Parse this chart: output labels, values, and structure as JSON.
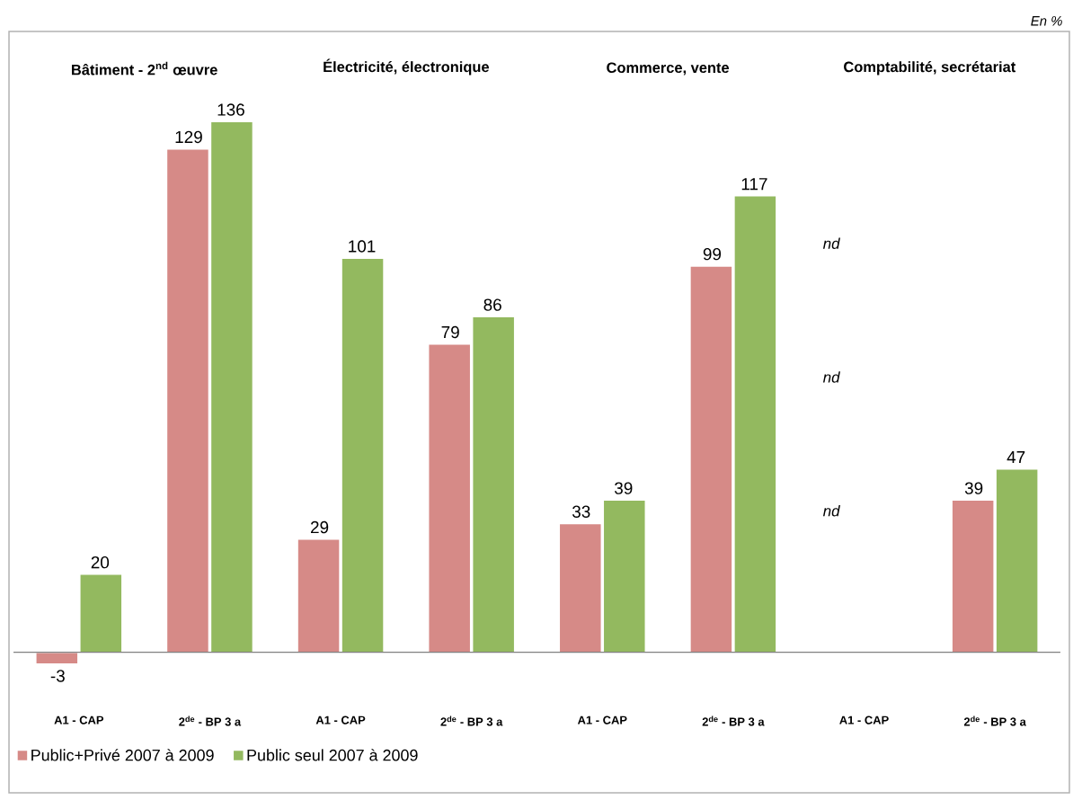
{
  "chart_data": {
    "type": "bar",
    "categories": [
      "A1 - CAP",
      "2$^{de}$ - BP 3 a",
      "A1 - CAP",
      "2$^{de}$ - BP 3 a",
      "A1 - CAP",
      "2$^{de}$ - BP 3 a",
      "A1 - CAP",
      "2$^{de}$ - BP 3 a"
    ],
    "series": [
      {
        "name": "Public+Privé 2007 à 2009",
        "color": "#d68a87",
        "values": [
          -3,
          129,
          29,
          79,
          33,
          99,
          null,
          39
        ]
      },
      {
        "name": "Public seul 2007 à 2009",
        "color": "#93b95f",
        "values": [
          20,
          136,
          101,
          86,
          39,
          117,
          null,
          47
        ]
      }
    ],
    "annotations": [
      "En %",
      "Bâtiment - 2$^{nd}$ œuvre",
      "Électricité, électronique",
      "Commerce, vente",
      "Comptabilité, secrétariat",
      "nd",
      "nd",
      "nd"
    ],
    "data_labels": true,
    "legend": "bottom left"
  }
}
